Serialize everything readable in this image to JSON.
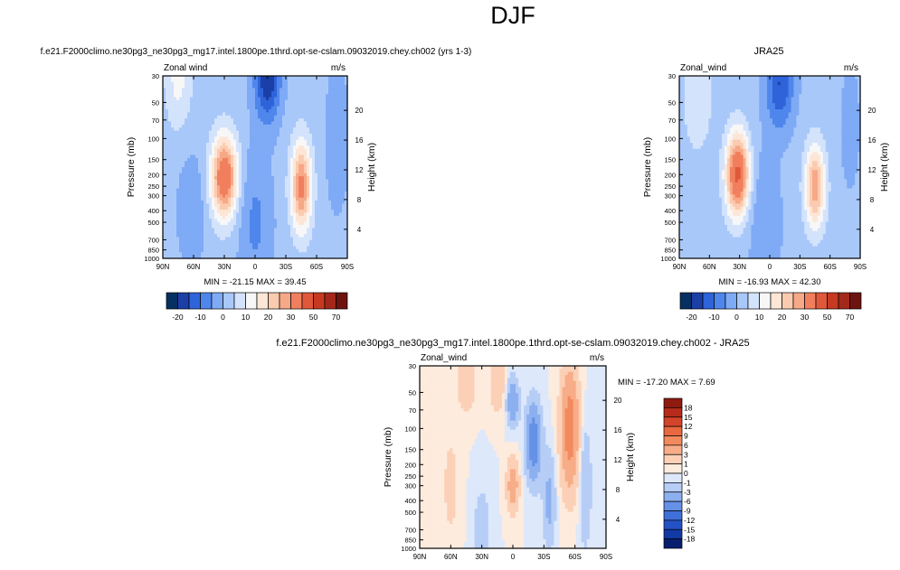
{
  "figure_title": "DJF",
  "panels": [
    {
      "title": "f.e21.F2000climo.ne30pg3_ne30pg3_mg17.intel.1800pe.1thrd.opt-se-cslam.09032019.chey.ch002 (yrs 1-3)",
      "variable": "Zonal wind",
      "units": "m/s",
      "ylabel": "Pressure (mb)",
      "right_label": "Height (km)",
      "minmax": "MIN = -21.15   MAX =  39.45"
    },
    {
      "title": "JRA25",
      "variable": "Zonal_wind",
      "units": "m/s",
      "ylabel": "Pressure (mb)",
      "right_label": "Height (km)",
      "minmax": "MIN = -16.93   MAX =  42.30"
    },
    {
      "title": "f.e21.F2000climo.ne30pg3_ne30pg3_mg17.intel.1800pe.1thrd.opt-se-cslam.09032019.chey.ch002 - JRA25",
      "variable": "Zonal_wind",
      "units": "m/s",
      "ylabel": "Pressure (mb)",
      "right_label": "Height (km)",
      "minmax": "MIN = -17.20   MAX =   7.69"
    }
  ],
  "x_ticks": [
    "90N",
    "60N",
    "30N",
    "0",
    "30S",
    "60S",
    "90S"
  ],
  "p_ticks": [
    "30",
    "50",
    "70",
    "100",
    "150",
    "200",
    "250",
    "300",
    "400",
    "500",
    "700",
    "850",
    "1000"
  ],
  "h_ticks": [
    "4",
    "8",
    "12",
    "16",
    "20"
  ],
  "colorbar_main": {
    "labels": [
      "-20",
      "-10",
      "0",
      "10",
      "20",
      "30",
      "50",
      "70"
    ],
    "colors": [
      "#053061",
      "#1b3fa7",
      "#2f63d9",
      "#4f86ec",
      "#7faaf5",
      "#a9c8fa",
      "#d4e3fc",
      "#f7f7f7",
      "#fde6d6",
      "#fbcbb0",
      "#f7a887",
      "#f17f5d",
      "#e0583a",
      "#c63a22",
      "#a4281a",
      "#6d1410"
    ]
  },
  "colorbar_diff": {
    "labels": [
      "18",
      "15",
      "12",
      "9",
      "6",
      "3",
      "1",
      "0",
      "-1",
      "-3",
      "-6",
      "-9",
      "-12",
      "-15",
      "-18"
    ],
    "colors": [
      "#8e1a10",
      "#b62b1a",
      "#d4442a",
      "#e9683f",
      "#f28a5e",
      "#f7ad88",
      "#fbd0b6",
      "#fdebdd",
      "#dde8fb",
      "#b6cdf6",
      "#8cb0ef",
      "#6591e6",
      "#3f70da",
      "#2451c4",
      "#123aa6",
      "#071e6e"
    ]
  },
  "chart_data": [
    {
      "type": "heatmap",
      "title": "f.e21.F2000climo.ne30pg3_ne30pg3_mg17.intel.1800pe.1thrd.opt-se-cslam.09032019.chey.ch002 (yrs 1-3)",
      "subtitle": "Zonal wind",
      "units": "m/s",
      "xlabel": "",
      "ylabel": "Pressure (mb)",
      "y2label": "Height (km)",
      "x": [
        "90N",
        "60N",
        "30N",
        "0",
        "30S",
        "60S",
        "90S"
      ],
      "y": [
        30,
        50,
        70,
        100,
        150,
        200,
        250,
        300,
        400,
        500,
        700,
        850,
        1000
      ],
      "min": -21.15,
      "max": 39.45,
      "contour_levels": [
        -20,
        -15,
        -10,
        -5,
        0,
        5,
        10,
        15,
        20,
        25,
        30,
        40,
        50,
        60,
        70
      ],
      "jets": [
        {
          "lat_deg": 30,
          "pressure_mb": 200,
          "peak_ms": 35
        },
        {
          "lat_deg": -45,
          "pressure_mb": 250,
          "peak_ms": 30
        }
      ],
      "minimum": {
        "lat_deg": -12,
        "pressure_mb": 30,
        "value_ms": -20
      }
    },
    {
      "type": "heatmap",
      "title": "JRA25",
      "subtitle": "Zonal_wind",
      "units": "m/s",
      "xlabel": "",
      "ylabel": "Pressure (mb)",
      "y2label": "Height (km)",
      "x": [
        "90N",
        "60N",
        "30N",
        "0",
        "30S",
        "60S",
        "90S"
      ],
      "y": [
        30,
        50,
        70,
        100,
        150,
        200,
        250,
        300,
        400,
        500,
        700,
        850,
        1000
      ],
      "min": -16.93,
      "max": 42.3,
      "contour_levels": [
        -20,
        -15,
        -10,
        -5,
        0,
        5,
        10,
        15,
        20,
        25,
        30,
        40,
        50,
        60,
        70
      ],
      "jets": [
        {
          "lat_deg": 30,
          "pressure_mb": 200,
          "peak_ms": 40
        },
        {
          "lat_deg": -45,
          "pressure_mb": 250,
          "peak_ms": 28
        }
      ],
      "minimum": {
        "lat_deg": -12,
        "pressure_mb": 30,
        "value_ms": -17
      }
    },
    {
      "type": "heatmap",
      "title": "f.e21.F2000climo.ne30pg3_ne30pg3_mg17.intel.1800pe.1thrd.opt-se-cslam.09032019.chey.ch002 - JRA25",
      "subtitle": "Zonal_wind",
      "units": "m/s",
      "xlabel": "",
      "ylabel": "Pressure (mb)",
      "y2label": "Height (km)",
      "x": [
        "90N",
        "60N",
        "30N",
        "0",
        "30S",
        "60S",
        "90S"
      ],
      "y": [
        30,
        50,
        70,
        100,
        150,
        200,
        250,
        300,
        400,
        500,
        700,
        850,
        1000
      ],
      "min": -17.2,
      "max": 7.69,
      "contour_levels": [
        -18,
        -15,
        -12,
        -9,
        -6,
        -3,
        -1,
        0,
        1,
        3,
        6,
        9,
        12,
        15,
        18
      ],
      "notable": [
        {
          "lat_deg": -55,
          "pressure_mb": 100,
          "value_ms": 7
        },
        {
          "lat_deg": 0,
          "pressure_mb": 300,
          "value_ms": 5
        },
        {
          "lat_deg": -20,
          "pressure_mb": 130,
          "value_ms": -9
        },
        {
          "lat_deg": 0,
          "pressure_mb": 60,
          "value_ms": -6
        }
      ]
    }
  ]
}
